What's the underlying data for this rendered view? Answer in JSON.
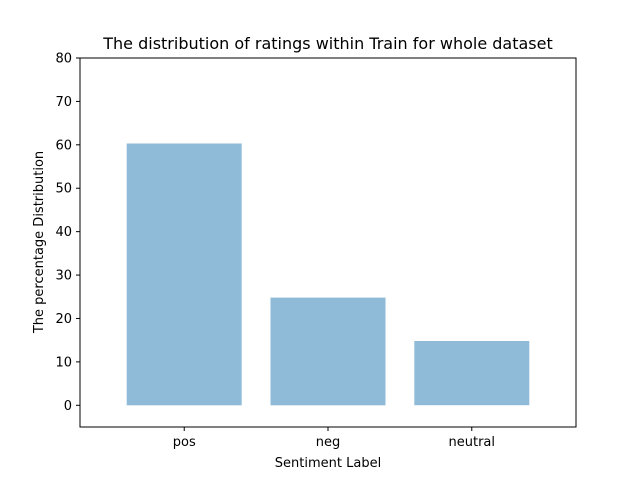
{
  "chart_data": {
    "type": "bar",
    "title": "The distribution of ratings within Train for whole dataset",
    "xlabel": "Sentiment Label",
    "ylabel": "The percentage Distribution",
    "categories": [
      "pos",
      "neg",
      "neutral"
    ],
    "values": [
      60.3,
      24.8,
      14.8
    ],
    "ylim": [
      -5,
      80
    ],
    "yticks": [
      "0",
      "10",
      "20",
      "30",
      "40",
      "50",
      "60",
      "70",
      "80"
    ],
    "bar_color": "#8fbbd9",
    "grid": false
  }
}
